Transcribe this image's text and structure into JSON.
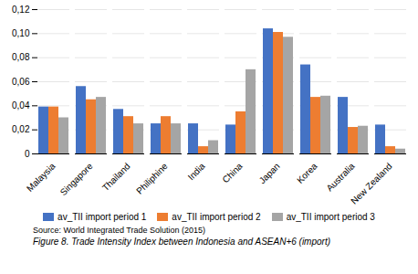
{
  "chart_data": {
    "type": "bar",
    "categories": [
      "Malaysia",
      "Singapore",
      "Thailand",
      "Philiphine",
      "India",
      "China",
      "Japan",
      "Korea",
      "Australia",
      "New Zealand"
    ],
    "series": [
      {
        "name": "av_TII import period 1",
        "color": "#4472C4",
        "values": [
          0.039,
          0.056,
          0.037,
          0.025,
          0.025,
          0.024,
          0.104,
          0.074,
          0.047,
          0.024
        ]
      },
      {
        "name": "av_TII import period 2",
        "color": "#ED7D31",
        "values": [
          0.039,
          0.045,
          0.031,
          0.031,
          0.006,
          0.035,
          0.101,
          0.047,
          0.022,
          0.006
        ]
      },
      {
        "name": "av_TII import period 3",
        "color": "#A5A5A5",
        "values": [
          0.03,
          0.047,
          0.025,
          0.025,
          0.011,
          0.07,
          0.097,
          0.048,
          0.023,
          0.004
        ]
      }
    ],
    "ylim": [
      0,
      0.12
    ],
    "yticks": [
      0,
      {
        "value": 0.02,
        "label": "0,02"
      },
      {
        "value": 0.04,
        "label": "0,04"
      },
      {
        "value": 0.06,
        "label": "0,06"
      },
      {
        "value": 0.08,
        "label": "0,08"
      },
      {
        "value": 0.1,
        "label": "0,10"
      },
      {
        "value": 0.12,
        "label": "0,12"
      }
    ],
    "grid": true,
    "legend": "bottom",
    "source": "Source: World Integrated Trade Solution (2015)",
    "caption": "Figure 8. Trade Intensity Index between Indonesia and ASEAN+6 (import)"
  }
}
